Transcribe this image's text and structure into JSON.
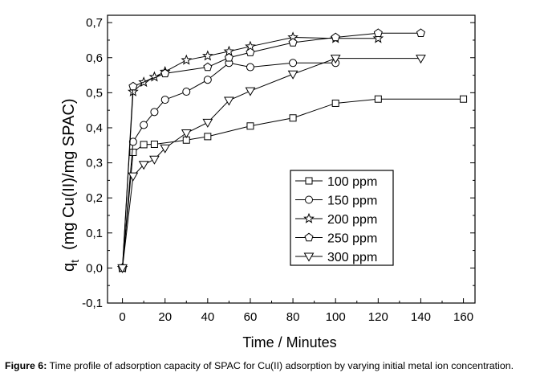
{
  "chart_data": {
    "type": "line",
    "title": "",
    "xlabel": "Time / Minutes",
    "ylabel_main": "q",
    "ylabel_sub": "t",
    "ylabel_rest": "(mg Cu(II)/mg SPAC)",
    "xlim": [
      -7,
      160
    ],
    "ylim": [
      -0.1,
      0.72
    ],
    "xticks": [
      0,
      20,
      40,
      60,
      80,
      100,
      120,
      140,
      160
    ],
    "yticks": [
      -0.1,
      0.0,
      0.1,
      0.2,
      0.3,
      0.4,
      0.5,
      0.6,
      0.7
    ],
    "xtick_labels": [
      "0",
      "20",
      "40",
      "60",
      "80",
      "100",
      "120",
      "140",
      "160"
    ],
    "ytick_labels": [
      "-0,1",
      "0,0",
      "0,1",
      "0,2",
      "0,3",
      "0,4",
      "0,5",
      "0,6",
      "0,7"
    ],
    "grid": false,
    "legend_position": "bottom-right",
    "series": [
      {
        "name": "100 ppm",
        "marker": "square",
        "x": [
          0,
          5,
          10,
          15,
          30,
          40,
          60,
          80,
          100,
          120,
          160
        ],
        "y": [
          0.0,
          0.33,
          0.352,
          0.353,
          0.365,
          0.375,
          0.405,
          0.428,
          0.47,
          0.482,
          0.482
        ]
      },
      {
        "name": "150 ppm",
        "marker": "circle",
        "x": [
          0,
          5,
          10,
          15,
          20,
          30,
          40,
          50,
          60,
          80,
          100
        ],
        "y": [
          0.0,
          0.36,
          0.408,
          0.445,
          0.48,
          0.503,
          0.537,
          0.585,
          0.573,
          0.585,
          0.585
        ]
      },
      {
        "name": "200 ppm",
        "marker": "star",
        "x": [
          0,
          5,
          10,
          15,
          20,
          30,
          40,
          50,
          60,
          80,
          100,
          120
        ],
        "y": [
          0.0,
          0.503,
          0.53,
          0.545,
          0.56,
          0.593,
          0.605,
          0.618,
          0.632,
          0.658,
          0.655,
          0.655
        ]
      },
      {
        "name": "250 ppm",
        "marker": "pentagon",
        "x": [
          0,
          5,
          20,
          40,
          50,
          60,
          80,
          100,
          120,
          140
        ],
        "y": [
          0.0,
          0.518,
          0.555,
          0.573,
          0.6,
          0.615,
          0.643,
          0.658,
          0.67,
          0.67
        ]
      },
      {
        "name": "300 ppm",
        "marker": "triangle-down",
        "x": [
          0,
          5,
          10,
          15,
          20,
          30,
          40,
          50,
          60,
          80,
          100,
          140
        ],
        "y": [
          0.0,
          0.262,
          0.295,
          0.31,
          0.342,
          0.385,
          0.415,
          0.478,
          0.505,
          0.553,
          0.598,
          0.598
        ]
      }
    ]
  },
  "caption": {
    "label": "Figure 6:",
    "text": " Time profile of adsorption capacity of SPAC for Cu(II) adsorption by varying initial metal ion concentration."
  }
}
